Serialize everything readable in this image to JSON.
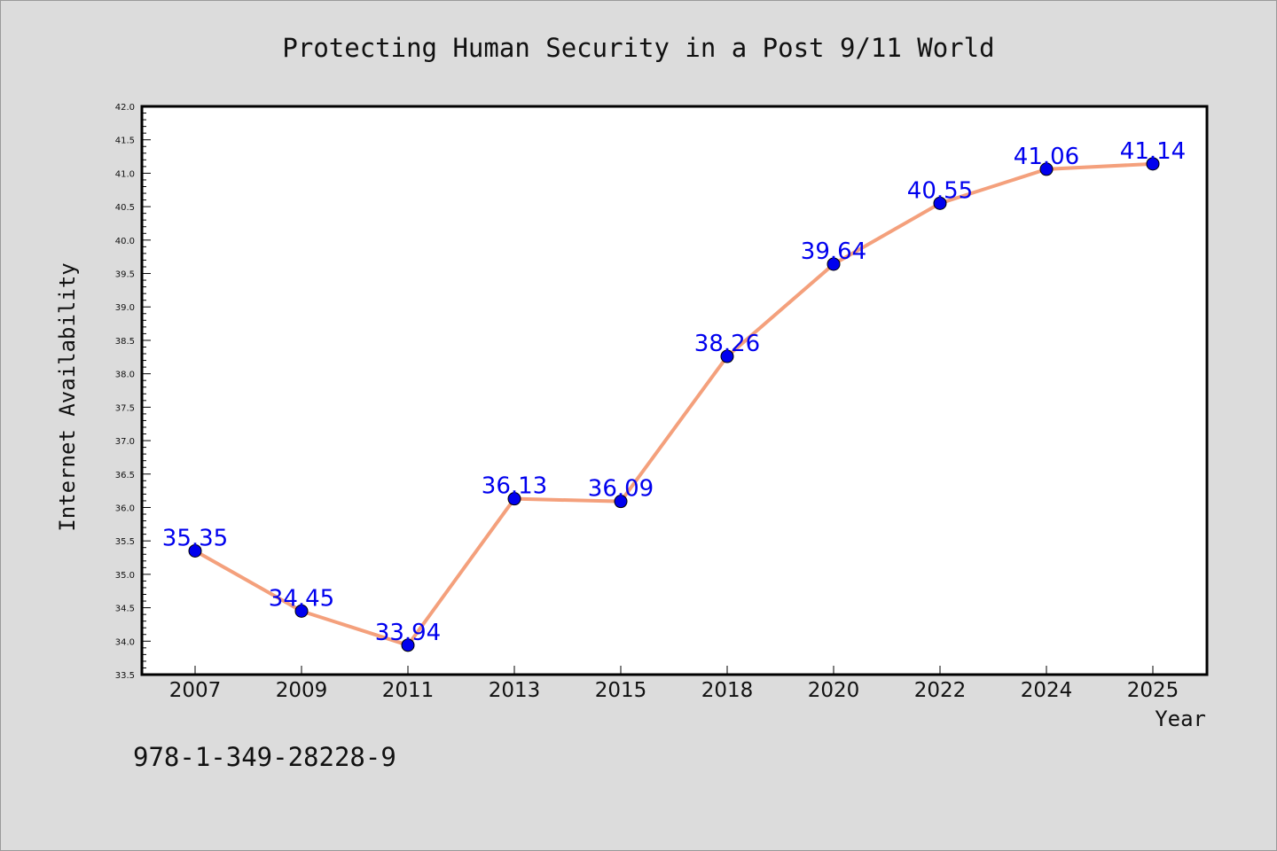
{
  "chart_data": {
    "type": "line",
    "title": "Protecting Human Security in a Post 9/11 World",
    "xlabel": "Year",
    "ylabel": "Internet Availability",
    "categories": [
      "2007",
      "2009",
      "2011",
      "2013",
      "2015",
      "2018",
      "2020",
      "2022",
      "2024",
      "2025"
    ],
    "series": [
      {
        "values": [
          35.35,
          34.45,
          33.94,
          36.13,
          36.09,
          38.26,
          39.64,
          40.55,
          41.06,
          41.14
        ]
      }
    ],
    "data_labels": [
      "35.35",
      "34.45",
      "33.94",
      "36.13",
      "36.09",
      "38.26",
      "39.64",
      "40.55",
      "41.06",
      "41.14"
    ],
    "ylim": [
      33.5,
      42.0
    ],
    "yticks": [
      "33.5",
      "34.0",
      "34.5",
      "35.0",
      "35.5",
      "36.0",
      "36.5",
      "37.0",
      "37.5",
      "38.0",
      "38.5",
      "39.0",
      "39.5",
      "40.0",
      "40.5",
      "41.0",
      "41.5",
      "42.0"
    ],
    "grid": false,
    "line_color": "#f4a07c",
    "marker_color": "#0000ee",
    "label_color": "#0000ee",
    "legend": "none"
  },
  "footer_text": "978-1-349-28228-9"
}
